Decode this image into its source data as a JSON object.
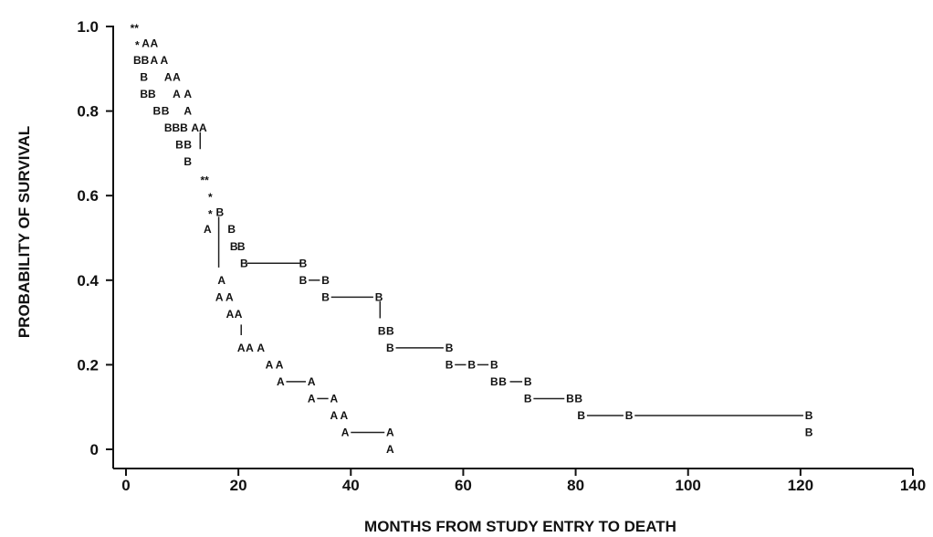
{
  "chart_data": {
    "type": "line",
    "subtype": "kaplan-meier-step",
    "title": "",
    "xlabel": "MONTHS FROM STUDY ENTRY TO DEATH",
    "ylabel": "PROBABILITY OF SURVIVAL",
    "xlim": [
      0,
      140
    ],
    "ylim": [
      0,
      1.0
    ],
    "x_ticks": [
      0,
      20,
      40,
      60,
      80,
      100,
      120,
      140
    ],
    "x_tick_labels": [
      "0",
      "20",
      "40",
      "60",
      "80",
      "100",
      "120",
      "140"
    ],
    "y_ticks": [
      0,
      0.2,
      0.4,
      0.6,
      0.8,
      1.0
    ],
    "y_tick_labels": [
      "0",
      "0.2",
      "0.4",
      "0.6",
      "0.8",
      "1.0"
    ],
    "grid": false,
    "legend": "none",
    "shared_markers": [
      {
        "label": "**",
        "x": 1.5,
        "y": 1.0
      },
      {
        "label": "*",
        "x": 2.0,
        "y": 0.96
      },
      {
        "label": "**",
        "x": 14.0,
        "y": 0.64
      },
      {
        "label": "*",
        "x": 15.0,
        "y": 0.6
      },
      {
        "label": "*",
        "x": 15.0,
        "y": 0.56
      }
    ],
    "series": [
      {
        "name": "A",
        "points": [
          {
            "x": 3.5,
            "y": 0.96
          },
          {
            "x": 5.0,
            "y": 0.96
          },
          {
            "x": 5.0,
            "y": 0.92
          },
          {
            "x": 6.8,
            "y": 0.92
          },
          {
            "x": 7.5,
            "y": 0.88
          },
          {
            "x": 9.0,
            "y": 0.88
          },
          {
            "x": 9.0,
            "y": 0.84
          },
          {
            "x": 11.0,
            "y": 0.84
          },
          {
            "x": 11.0,
            "y": 0.8
          },
          {
            "x": 12.3,
            "y": 0.76
          },
          {
            "x": 13.7,
            "y": 0.76
          },
          {
            "x": 14.5,
            "y": 0.52
          },
          {
            "x": 17.0,
            "y": 0.4
          },
          {
            "x": 16.6,
            "y": 0.36
          },
          {
            "x": 18.4,
            "y": 0.36
          },
          {
            "x": 18.5,
            "y": 0.32
          },
          {
            "x": 20.0,
            "y": 0.32
          },
          {
            "x": 20.5,
            "y": 0.24
          },
          {
            "x": 22.0,
            "y": 0.24
          },
          {
            "x": 24.0,
            "y": 0.24
          },
          {
            "x": 25.5,
            "y": 0.2
          },
          {
            "x": 27.3,
            "y": 0.2
          },
          {
            "x": 27.5,
            "y": 0.16
          },
          {
            "x": 33.0,
            "y": 0.16
          },
          {
            "x": 33.0,
            "y": 0.12
          },
          {
            "x": 37.0,
            "y": 0.12
          },
          {
            "x": 37.0,
            "y": 0.08
          },
          {
            "x": 38.8,
            "y": 0.08
          },
          {
            "x": 39.0,
            "y": 0.04
          },
          {
            "x": 47.0,
            "y": 0.04
          },
          {
            "x": 47.0,
            "y": 0.0
          }
        ]
      },
      {
        "name": "B",
        "points": [
          {
            "x": 2.0,
            "y": 0.92
          },
          {
            "x": 3.4,
            "y": 0.92
          },
          {
            "x": 3.2,
            "y": 0.88
          },
          {
            "x": 3.2,
            "y": 0.84
          },
          {
            "x": 4.6,
            "y": 0.84
          },
          {
            "x": 5.5,
            "y": 0.8
          },
          {
            "x": 7.0,
            "y": 0.8
          },
          {
            "x": 7.5,
            "y": 0.76
          },
          {
            "x": 8.9,
            "y": 0.76
          },
          {
            "x": 10.3,
            "y": 0.76
          },
          {
            "x": 9.5,
            "y": 0.72
          },
          {
            "x": 11.0,
            "y": 0.72
          },
          {
            "x": 11.0,
            "y": 0.68
          },
          {
            "x": 16.7,
            "y": 0.56
          },
          {
            "x": 18.8,
            "y": 0.52
          },
          {
            "x": 19.2,
            "y": 0.48
          },
          {
            "x": 20.5,
            "y": 0.48
          },
          {
            "x": 21.0,
            "y": 0.44
          },
          {
            "x": 31.5,
            "y": 0.44
          },
          {
            "x": 31.5,
            "y": 0.4
          },
          {
            "x": 35.5,
            "y": 0.4
          },
          {
            "x": 35.5,
            "y": 0.36
          },
          {
            "x": 45.0,
            "y": 0.36
          },
          {
            "x": 45.5,
            "y": 0.28
          },
          {
            "x": 47.0,
            "y": 0.28
          },
          {
            "x": 47.0,
            "y": 0.24
          },
          {
            "x": 57.5,
            "y": 0.24
          },
          {
            "x": 57.5,
            "y": 0.2
          },
          {
            "x": 61.5,
            "y": 0.2
          },
          {
            "x": 65.5,
            "y": 0.2
          },
          {
            "x": 65.5,
            "y": 0.16
          },
          {
            "x": 67.0,
            "y": 0.16
          },
          {
            "x": 71.5,
            "y": 0.16
          },
          {
            "x": 71.5,
            "y": 0.12
          },
          {
            "x": 79.0,
            "y": 0.12
          },
          {
            "x": 80.5,
            "y": 0.12
          },
          {
            "x": 81.0,
            "y": 0.08
          },
          {
            "x": 89.5,
            "y": 0.08
          },
          {
            "x": 121.5,
            "y": 0.08
          },
          {
            "x": 121.5,
            "y": 0.04
          }
        ]
      }
    ],
    "connectors": [
      {
        "x1": 13.2,
        "y1": 0.75,
        "x2": 13.2,
        "y2": 0.71
      },
      {
        "x1": 16.5,
        "y1": 0.55,
        "x2": 16.5,
        "y2": 0.43
      },
      {
        "x1": 21.5,
        "y1": 0.44,
        "x2": 31.0,
        "y2": 0.44
      },
      {
        "x1": 32.5,
        "y1": 0.4,
        "x2": 34.5,
        "y2": 0.4
      },
      {
        "x1": 36.5,
        "y1": 0.36,
        "x2": 44.0,
        "y2": 0.36
      },
      {
        "x1": 45.2,
        "y1": 0.35,
        "x2": 45.2,
        "y2": 0.31
      },
      {
        "x1": 48.0,
        "y1": 0.24,
        "x2": 56.5,
        "y2": 0.24
      },
      {
        "x1": 58.5,
        "y1": 0.2,
        "x2": 60.5,
        "y2": 0.2
      },
      {
        "x1": 62.5,
        "y1": 0.2,
        "x2": 64.5,
        "y2": 0.2
      },
      {
        "x1": 68.3,
        "y1": 0.16,
        "x2": 70.5,
        "y2": 0.16
      },
      {
        "x1": 72.5,
        "y1": 0.12,
        "x2": 78.0,
        "y2": 0.12
      },
      {
        "x1": 82.0,
        "y1": 0.08,
        "x2": 88.5,
        "y2": 0.08
      },
      {
        "x1": 90.5,
        "y1": 0.08,
        "x2": 120.5,
        "y2": 0.08
      },
      {
        "x1": 28.5,
        "y1": 0.16,
        "x2": 32.0,
        "y2": 0.16
      },
      {
        "x1": 34.0,
        "y1": 0.12,
        "x2": 36.0,
        "y2": 0.12
      },
      {
        "x1": 40.0,
        "y1": 0.04,
        "x2": 46.0,
        "y2": 0.04
      },
      {
        "x1": 20.5,
        "y1": 0.295,
        "x2": 20.5,
        "y2": 0.27
      }
    ]
  }
}
